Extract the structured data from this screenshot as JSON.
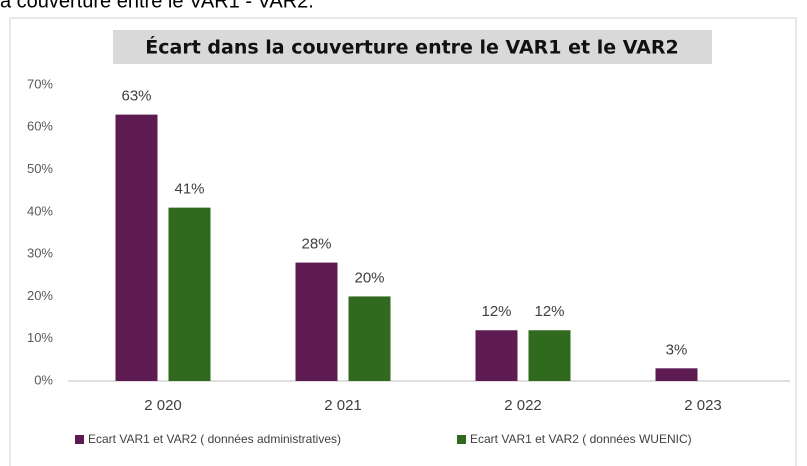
{
  "caption": "a couverture entre le VAR1 - VAR2.",
  "chart_data": {
    "type": "bar",
    "title": "Écart dans la couverture entre le VAR1 et le VAR2",
    "categories": [
      "2 020",
      "2 021",
      "2 022",
      "2 023"
    ],
    "series": [
      {
        "name": "Ecart VAR1 et VAR2 ( données administratives)",
        "color": "#5d1b52",
        "values": [
          63,
          28,
          12,
          3
        ],
        "value_labels": [
          "63%",
          "28%",
          "12%",
          "3%"
        ]
      },
      {
        "name": "Ecart VAR1 et VAR2 ( données WUENIC)",
        "color": "#2f6a1e",
        "values": [
          41,
          20,
          12,
          null
        ],
        "value_labels": [
          "41%",
          "20%",
          "12%",
          null
        ]
      }
    ],
    "ylim": [
      0,
      70
    ],
    "yticks": [
      {
        "value": 0,
        "label": "0%"
      },
      {
        "value": 10,
        "label": "10%"
      },
      {
        "value": 20,
        "label": "20%"
      },
      {
        "value": 30,
        "label": "30%"
      },
      {
        "value": 40,
        "label": "40%"
      },
      {
        "value": 50,
        "label": "50%"
      },
      {
        "value": 60,
        "label": "60%"
      },
      {
        "value": 70,
        "label": "70%"
      }
    ],
    "grid": false,
    "legend": "bottom"
  }
}
